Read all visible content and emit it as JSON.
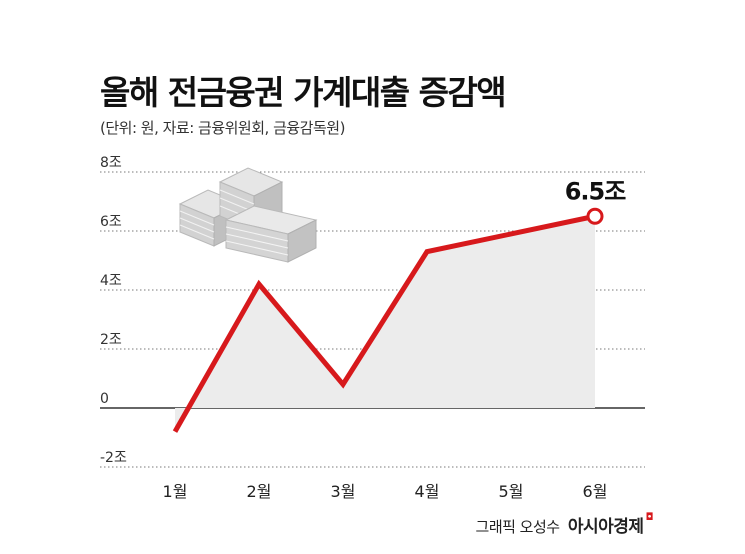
{
  "header": {
    "title": "올해 전금융권 가계대출 증감액",
    "subtitle": "(단위: 원, 자료: 금융위원회, 금융감독원)"
  },
  "credit": {
    "text": "그래픽 오성수",
    "brand": "아시아경제"
  },
  "colors": {
    "line": "#d7191c",
    "area": "#ececec",
    "grid": "#7a7a7a",
    "axis": "#333333"
  },
  "chart_data": {
    "type": "line",
    "categories": [
      "1월",
      "2월",
      "3월",
      "4월",
      "5월",
      "6월"
    ],
    "values": [
      -0.8,
      4.2,
      0.8,
      5.3,
      5.9,
      6.5
    ],
    "ylim": [
      -2,
      8
    ],
    "yticks": [
      -2,
      0,
      2,
      4,
      6,
      8
    ],
    "ytick_labels": [
      "-2조",
      "0",
      "2조",
      "4조",
      "6조",
      "8조"
    ],
    "grid": true,
    "annotations": [
      {
        "category": "6월",
        "text": "6.5조"
      }
    ],
    "decoration": "money-stacks-icon"
  }
}
